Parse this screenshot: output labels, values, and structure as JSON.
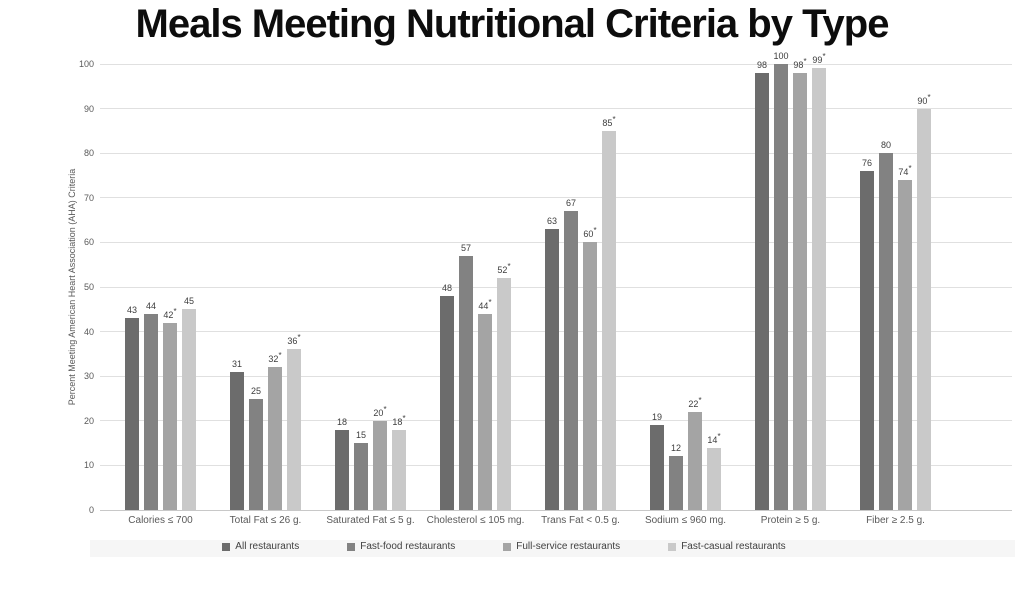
{
  "header": {
    "title": "Meals Meeting Nutritional Criteria by Type"
  },
  "chart_data": {
    "type": "bar",
    "title": "Meals Meeting Nutritional Criteria by Type",
    "xlabel": "",
    "ylabel": "Percent Meeting American Heart Association (AHA) Criteria",
    "ylim": [
      0,
      100
    ],
    "ytick_step": 10,
    "grid": true,
    "legend_position": "bottom",
    "significance_marker": "*",
    "categories": [
      "Calories ≤ 700",
      "Total Fat ≤ 26 g.",
      "Saturated Fat ≤ 5 g.",
      "Cholesterol ≤ 105 mg.",
      "Trans Fat < 0.5 g.",
      "Sodium ≤ 960 mg.",
      "Protein ≥ 5 g.",
      "Fiber ≥ 2.5 g."
    ],
    "series": [
      {
        "name": "All restaurants",
        "color": "#6c6c6c",
        "values": [
          43,
          31,
          18,
          48,
          63,
          19,
          98,
          76
        ],
        "sig": [
          false,
          false,
          false,
          false,
          false,
          false,
          false,
          false
        ]
      },
      {
        "name": "Fast-food restaurants",
        "color": "#828282",
        "values": [
          44,
          25,
          15,
          57,
          67,
          12,
          100,
          80
        ],
        "sig": [
          false,
          false,
          false,
          false,
          false,
          false,
          false,
          false
        ]
      },
      {
        "name": "Full-service restaurants",
        "color": "#a4a4a4",
        "values": [
          42,
          32,
          20,
          44,
          60,
          22,
          98,
          74
        ],
        "sig": [
          true,
          true,
          true,
          true,
          true,
          true,
          true,
          true
        ]
      },
      {
        "name": "Fast-casual restaurants",
        "color": "#c9c9c9",
        "values": [
          45,
          36,
          18,
          52,
          85,
          14,
          99,
          90
        ],
        "sig": [
          false,
          true,
          true,
          true,
          true,
          true,
          true,
          true
        ]
      }
    ]
  }
}
